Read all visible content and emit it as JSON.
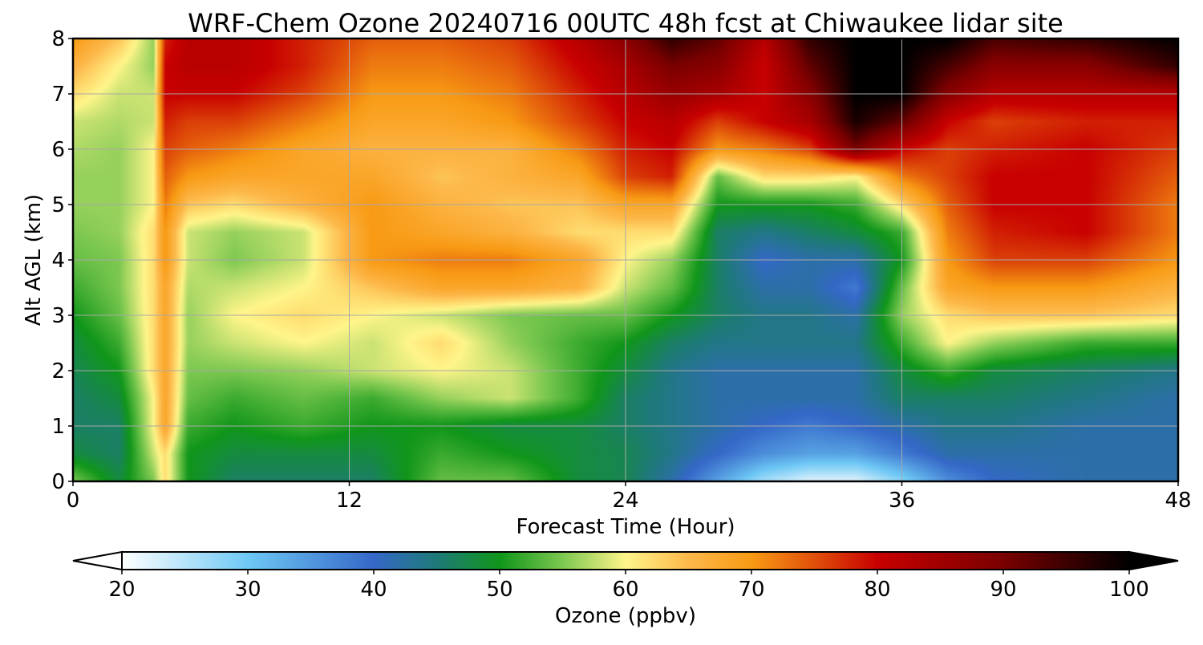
{
  "chart_data": {
    "type": "heatmap",
    "title": "WRF-Chem Ozone  20240716 00UTC 48h fcst at Chiwaukee lidar site",
    "xlabel": "Forecast Time (Hour)",
    "ylabel": "Alt AGL (km)",
    "xlim": [
      0,
      48
    ],
    "ylim": [
      0,
      8
    ],
    "xticks": [
      "0",
      "12",
      "24",
      "36",
      "48"
    ],
    "yticks": [
      "0",
      "1",
      "2",
      "3",
      "4",
      "5",
      "6",
      "7",
      "8"
    ],
    "grid": true,
    "colorbar": {
      "label": "Ozone  (ppbv)",
      "min": 20,
      "max": 100,
      "ticks": [
        "20",
        "30",
        "40",
        "50",
        "60",
        "70",
        "80",
        "90",
        "100"
      ],
      "extend": "both",
      "stops": [
        {
          "v": 20,
          "c": "#ffffff"
        },
        {
          "v": 30,
          "c": "#6ec8f5"
        },
        {
          "v": 40,
          "c": "#3568c8"
        },
        {
          "v": 45,
          "c": "#1e7a78"
        },
        {
          "v": 50,
          "c": "#10961a"
        },
        {
          "v": 55,
          "c": "#7cc850"
        },
        {
          "v": 60,
          "c": "#fff58a"
        },
        {
          "v": 65,
          "c": "#fdb84a"
        },
        {
          "v": 70,
          "c": "#f89a14"
        },
        {
          "v": 75,
          "c": "#e0500a"
        },
        {
          "v": 80,
          "c": "#c80000"
        },
        {
          "v": 90,
          "c": "#7a0000"
        },
        {
          "v": 100,
          "c": "#000000"
        }
      ]
    },
    "x": [
      0,
      2,
      3.5,
      4,
      5,
      7,
      10,
      13,
      16,
      19,
      22,
      24,
      26,
      28,
      30,
      32,
      34,
      36,
      38,
      40,
      44,
      48
    ],
    "y": [
      0,
      0.5,
      1,
      1.5,
      2,
      2.5,
      3,
      3.5,
      4,
      4.5,
      5,
      5.5,
      6,
      6.5,
      7,
      7.5,
      8
    ],
    "z": [
      [
        55,
        48,
        55,
        62,
        50,
        46,
        46,
        46,
        54,
        54,
        48,
        47,
        42,
        34,
        26,
        22,
        22,
        28,
        36,
        40,
        42,
        42
      ],
      [
        48,
        46,
        58,
        62,
        50,
        48,
        48,
        48,
        52,
        50,
        48,
        47,
        44,
        40,
        36,
        34,
        34,
        38,
        42,
        42,
        42,
        42
      ],
      [
        46,
        46,
        60,
        68,
        52,
        50,
        52,
        50,
        50,
        48,
        48,
        46,
        44,
        42,
        40,
        38,
        40,
        42,
        44,
        44,
        42,
        42
      ],
      [
        46,
        48,
        60,
        68,
        54,
        52,
        54,
        52,
        56,
        58,
        52,
        46,
        44,
        42,
        42,
        42,
        42,
        46,
        46,
        46,
        44,
        42
      ],
      [
        47,
        50,
        62,
        68,
        55,
        55,
        56,
        58,
        60,
        58,
        52,
        48,
        44,
        42,
        42,
        42,
        42,
        48,
        52,
        48,
        46,
        44
      ],
      [
        48,
        52,
        62,
        68,
        56,
        58,
        60,
        58,
        62,
        56,
        52,
        50,
        46,
        44,
        44,
        44,
        44,
        52,
        60,
        56,
        52,
        52
      ],
      [
        50,
        54,
        62,
        68,
        56,
        60,
        62,
        60,
        58,
        55,
        54,
        54,
        50,
        46,
        44,
        44,
        42,
        56,
        62,
        64,
        64,
        62
      ],
      [
        52,
        55,
        62,
        68,
        57,
        58,
        60,
        64,
        68,
        68,
        66,
        58,
        54,
        46,
        42,
        42,
        38,
        54,
        68,
        70,
        70,
        66
      ],
      [
        54,
        55,
        62,
        70,
        58,
        55,
        58,
        70,
        72,
        72,
        68,
        60,
        56,
        46,
        40,
        42,
        42,
        50,
        70,
        76,
        76,
        70
      ],
      [
        55,
        56,
        62,
        70,
        58,
        56,
        58,
        70,
        68,
        66,
        62,
        62,
        62,
        46,
        44,
        46,
        48,
        52,
        72,
        78,
        80,
        72
      ],
      [
        56,
        56,
        60,
        72,
        64,
        62,
        66,
        70,
        66,
        64,
        64,
        68,
        68,
        50,
        50,
        50,
        52,
        62,
        74,
        80,
        80,
        72
      ],
      [
        56,
        56,
        60,
        74,
        70,
        68,
        68,
        68,
        64,
        66,
        68,
        76,
        78,
        54,
        62,
        62,
        60,
        72,
        76,
        80,
        80,
        74
      ],
      [
        57,
        56,
        60,
        76,
        74,
        72,
        68,
        66,
        66,
        66,
        72,
        78,
        80,
        70,
        72,
        76,
        90,
        80,
        76,
        78,
        80,
        76
      ],
      [
        58,
        57,
        58,
        78,
        76,
        76,
        72,
        68,
        68,
        70,
        76,
        80,
        82,
        76,
        80,
        84,
        98,
        92,
        80,
        76,
        78,
        78
      ],
      [
        62,
        58,
        58,
        80,
        80,
        80,
        76,
        70,
        70,
        72,
        78,
        82,
        86,
        84,
        80,
        88,
        100,
        100,
        88,
        82,
        82,
        82
      ],
      [
        66,
        60,
        56,
        80,
        82,
        82,
        78,
        72,
        72,
        74,
        80,
        84,
        90,
        88,
        80,
        92,
        100,
        100,
        94,
        88,
        88,
        96
      ],
      [
        70,
        64,
        56,
        78,
        82,
        82,
        78,
        74,
        74,
        76,
        82,
        88,
        96,
        92,
        82,
        96,
        100,
        100,
        100,
        94,
        96,
        100
      ]
    ]
  }
}
